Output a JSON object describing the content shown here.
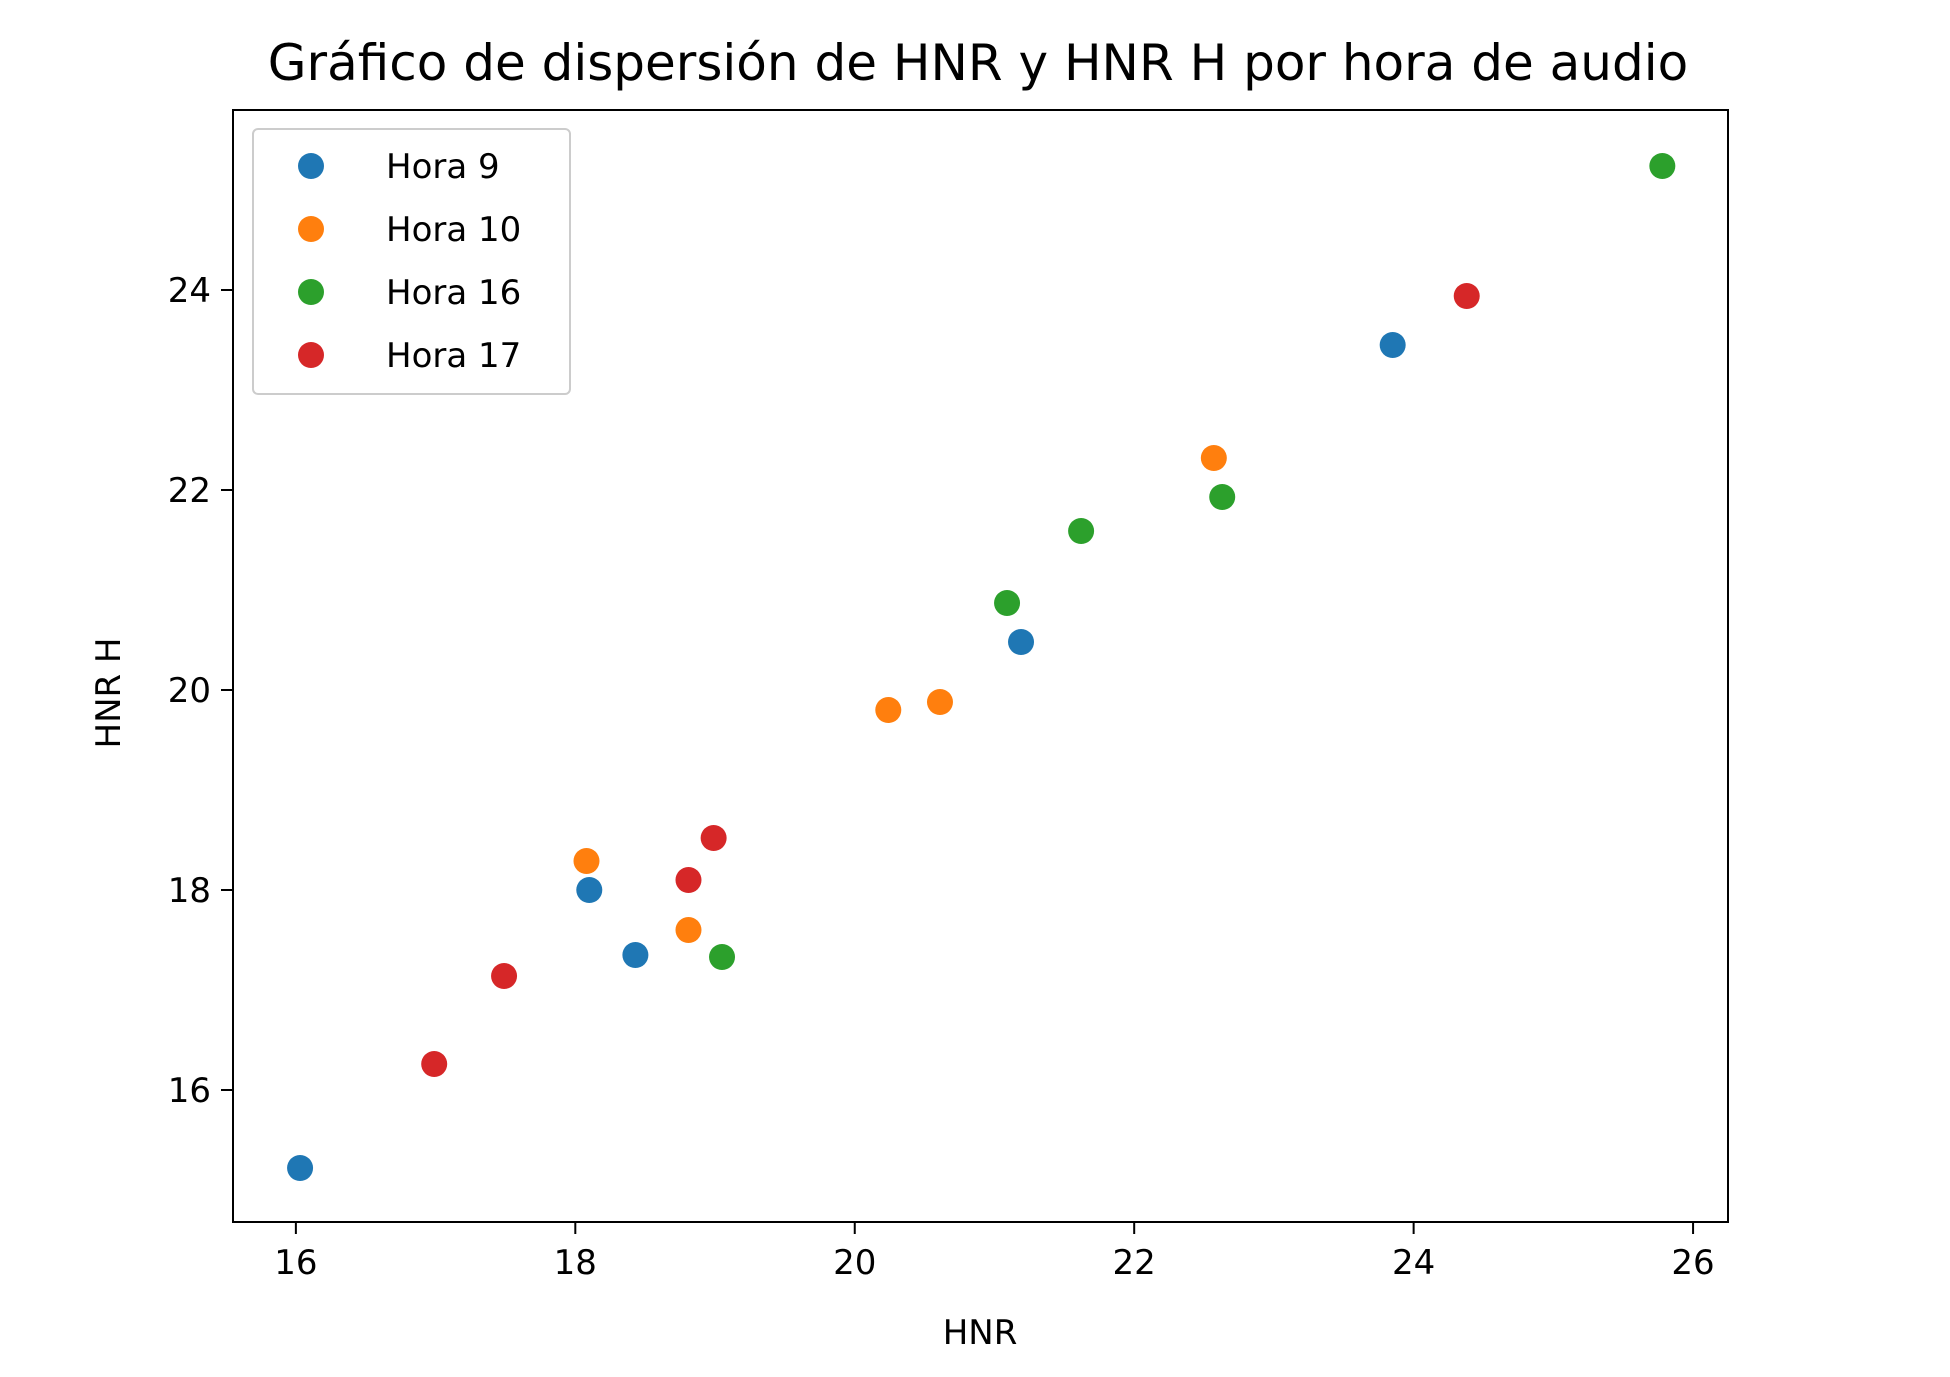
{
  "chart_data": {
    "type": "scatter",
    "title": "Gráfico de dispersión de HNR y HNR H por hora de audio",
    "xlabel": "HNR",
    "ylabel": "HNR H",
    "xlim": [
      15.55,
      26.25
    ],
    "ylim": [
      14.68,
      25.8
    ],
    "xticks": [
      16,
      18,
      20,
      22,
      24,
      26
    ],
    "yticks": [
      16,
      18,
      20,
      22,
      24
    ],
    "grid": false,
    "legend_position": "top-left",
    "series": [
      {
        "name": "Hora 9",
        "color": "#1f77b4",
        "points": [
          {
            "x": 16.03,
            "y": 15.22
          },
          {
            "x": 18.1,
            "y": 18.0
          },
          {
            "x": 18.43,
            "y": 17.35
          },
          {
            "x": 21.19,
            "y": 20.48
          },
          {
            "x": 23.85,
            "y": 23.45
          }
        ]
      },
      {
        "name": "Hora 10",
        "color": "#ff7f0e",
        "points": [
          {
            "x": 18.08,
            "y": 18.29
          },
          {
            "x": 18.81,
            "y": 17.6
          },
          {
            "x": 20.24,
            "y": 19.8
          },
          {
            "x": 20.61,
            "y": 19.88
          },
          {
            "x": 22.57,
            "y": 22.32
          }
        ]
      },
      {
        "name": "Hora 16",
        "color": "#2ca02c",
        "points": [
          {
            "x": 19.05,
            "y": 17.33
          },
          {
            "x": 21.09,
            "y": 20.87
          },
          {
            "x": 21.62,
            "y": 21.59
          },
          {
            "x": 22.63,
            "y": 21.93
          },
          {
            "x": 25.78,
            "y": 25.24
          }
        ]
      },
      {
        "name": "Hora 17",
        "color": "#d62728",
        "points": [
          {
            "x": 16.99,
            "y": 16.26
          },
          {
            "x": 17.49,
            "y": 17.14
          },
          {
            "x": 18.81,
            "y": 18.1
          },
          {
            "x": 18.99,
            "y": 18.52
          },
          {
            "x": 24.38,
            "y": 23.94
          }
        ]
      }
    ]
  }
}
